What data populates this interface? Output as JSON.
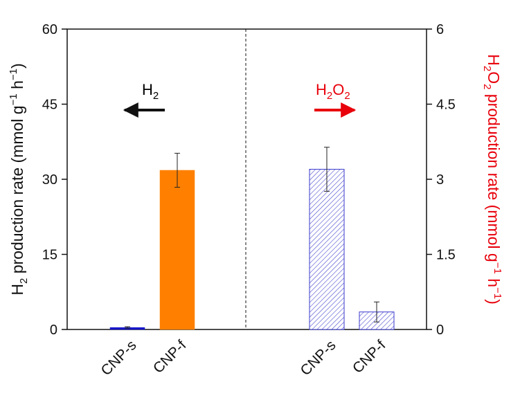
{
  "chart_data": {
    "type": "bar",
    "axes": {
      "left": {
        "label_main": "H",
        "label_sub": "2",
        "label_rest": " production rate (mmol g",
        "label_sup1": "−1",
        "label_mid": " h",
        "label_sup2": "−1",
        "label_end": ")",
        "ylim": [
          0,
          60
        ],
        "ticks": [
          "0",
          "15",
          "30",
          "45",
          "60"
        ],
        "color": "#111111"
      },
      "right": {
        "label_main": "H",
        "label_sub1": "2",
        "label_o": "O",
        "label_sub2": "2",
        "label_rest": " production rate (mmol g",
        "label_sup1": "−1",
        "label_mid": " h",
        "label_sup2": "−1",
        "label_end": ")",
        "ylim": [
          0,
          6
        ],
        "ticks": [
          "0",
          "1.5",
          "3",
          "4.5",
          "6"
        ],
        "color": "#e8000b"
      }
    },
    "panels": [
      {
        "axis": "left",
        "series": [
          {
            "category": "CNP-s",
            "value": 0.4,
            "error": 0.15,
            "fill": "#1515c8",
            "pattern": "solid"
          },
          {
            "category": "CNP-f",
            "value": 31.8,
            "error": 3.4,
            "fill": "#ff8000",
            "pattern": "solid"
          }
        ],
        "annotation": {
          "label_main": "H",
          "label_sub": "2",
          "direction": "left",
          "color": "#111111"
        }
      },
      {
        "axis": "right",
        "series": [
          {
            "category": "CNP-s",
            "value": 3.2,
            "error": 0.44,
            "fill": "#3a3acc",
            "pattern": "hatched"
          },
          {
            "category": "CNP-f",
            "value": 0.35,
            "error": 0.2,
            "fill": "#3a3acc",
            "pattern": "hatched"
          }
        ],
        "annotation": {
          "label_main": "H",
          "label_sub1": "2",
          "label_o": "O",
          "label_sub2": "2",
          "direction": "right",
          "color": "#e8000b"
        }
      }
    ],
    "divider": "dashed",
    "grid": false
  }
}
